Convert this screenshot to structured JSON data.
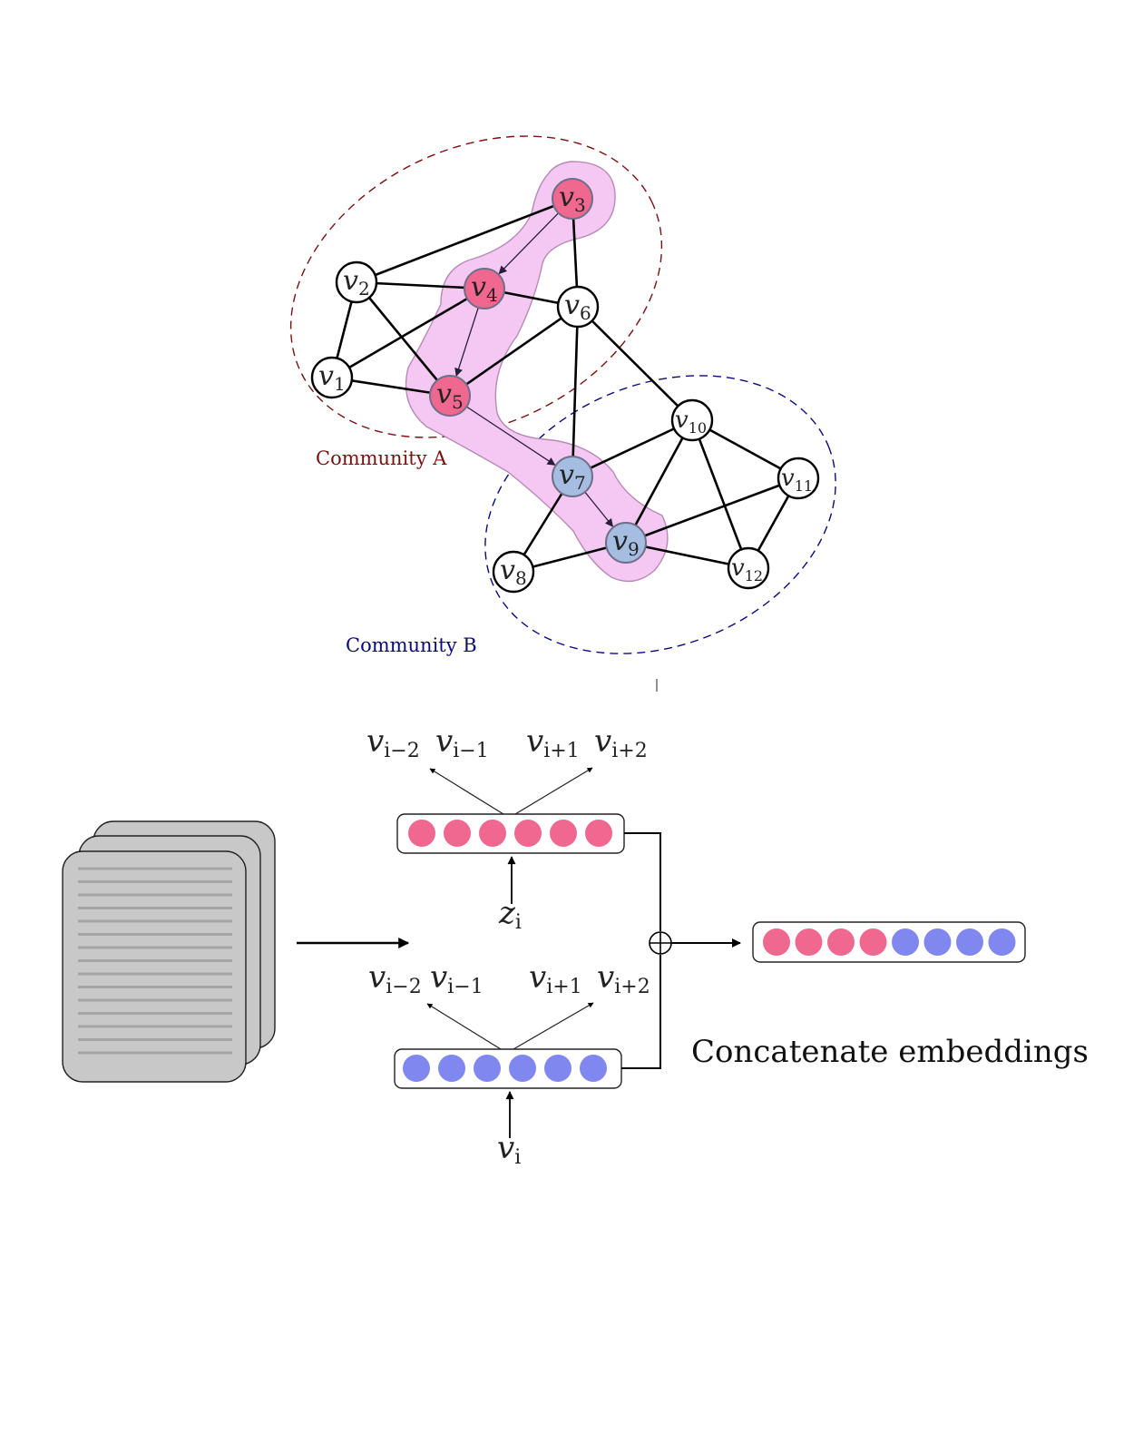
{
  "graph": {
    "nodes": [
      {
        "id": "v1",
        "base": "v",
        "sub": "1",
        "color": "#ffffff"
      },
      {
        "id": "v2",
        "base": "v",
        "sub": "2",
        "color": "#ffffff"
      },
      {
        "id": "v3",
        "base": "v",
        "sub": "3",
        "color": "#f06890"
      },
      {
        "id": "v4",
        "base": "v",
        "sub": "4",
        "color": "#f06890"
      },
      {
        "id": "v5",
        "base": "v",
        "sub": "5",
        "color": "#f06890"
      },
      {
        "id": "v6",
        "base": "v",
        "sub": "6",
        "color": "#ffffff"
      },
      {
        "id": "v7",
        "base": "v",
        "sub": "7",
        "color": "#a4bde0"
      },
      {
        "id": "v8",
        "base": "v",
        "sub": "8",
        "color": "#ffffff"
      },
      {
        "id": "v9",
        "base": "v",
        "sub": "9",
        "color": "#a4bde0"
      },
      {
        "id": "v10",
        "base": "v",
        "sub": "10",
        "color": "#ffffff"
      },
      {
        "id": "v11",
        "base": "v",
        "sub": "11",
        "color": "#ffffff"
      },
      {
        "id": "v12",
        "base": "v",
        "sub": "12",
        "color": "#ffffff"
      }
    ],
    "edges": [
      [
        "v1",
        "v2"
      ],
      [
        "v1",
        "v4"
      ],
      [
        "v1",
        "v5"
      ],
      [
        "v2",
        "v3"
      ],
      [
        "v2",
        "v4"
      ],
      [
        "v2",
        "v5"
      ],
      [
        "v3",
        "v6"
      ],
      [
        "v4",
        "v6"
      ],
      [
        "v5",
        "v6"
      ],
      [
        "v6",
        "v7"
      ],
      [
        "v6",
        "v10"
      ],
      [
        "v7",
        "v8"
      ],
      [
        "v7",
        "v10"
      ],
      [
        "v8",
        "v9"
      ],
      [
        "v9",
        "v10"
      ],
      [
        "v9",
        "v11"
      ],
      [
        "v9",
        "v12"
      ],
      [
        "v10",
        "v11"
      ],
      [
        "v10",
        "v12"
      ],
      [
        "v11",
        "v12"
      ]
    ],
    "walk": [
      "v3",
      "v4",
      "v5",
      "v7",
      "v9"
    ],
    "communities": [
      {
        "label": "Community A",
        "color": "#7a1010"
      },
      {
        "label": "Community B",
        "color": "#0a0a7a"
      }
    ],
    "highlight_color": "#f4c8f2"
  },
  "model": {
    "top_outputs": [
      {
        "base": "v",
        "sub": "i−2"
      },
      {
        "base": "v",
        "sub": "i−1"
      },
      {
        "base": "v",
        "sub": "i+1"
      },
      {
        "base": "v",
        "sub": "i+2"
      }
    ],
    "top_input": {
      "base": "z",
      "sub": "i"
    },
    "bottom_outputs": [
      {
        "base": "v",
        "sub": "i−2"
      },
      {
        "base": "v",
        "sub": "i−1"
      },
      {
        "base": "v",
        "sub": "i+1"
      },
      {
        "base": "v",
        "sub": "i+2"
      }
    ],
    "bottom_input": {
      "base": "v",
      "sub": "i"
    },
    "top_vector": {
      "units": 6,
      "color": "#f06890"
    },
    "bottom_vector": {
      "units": 6,
      "color": "#8088f0"
    },
    "concat_vector": {
      "pink_units": 4,
      "blue_units": 4
    },
    "concat_symbol": "⊕",
    "concat_caption": "Concatenate embeddings"
  }
}
